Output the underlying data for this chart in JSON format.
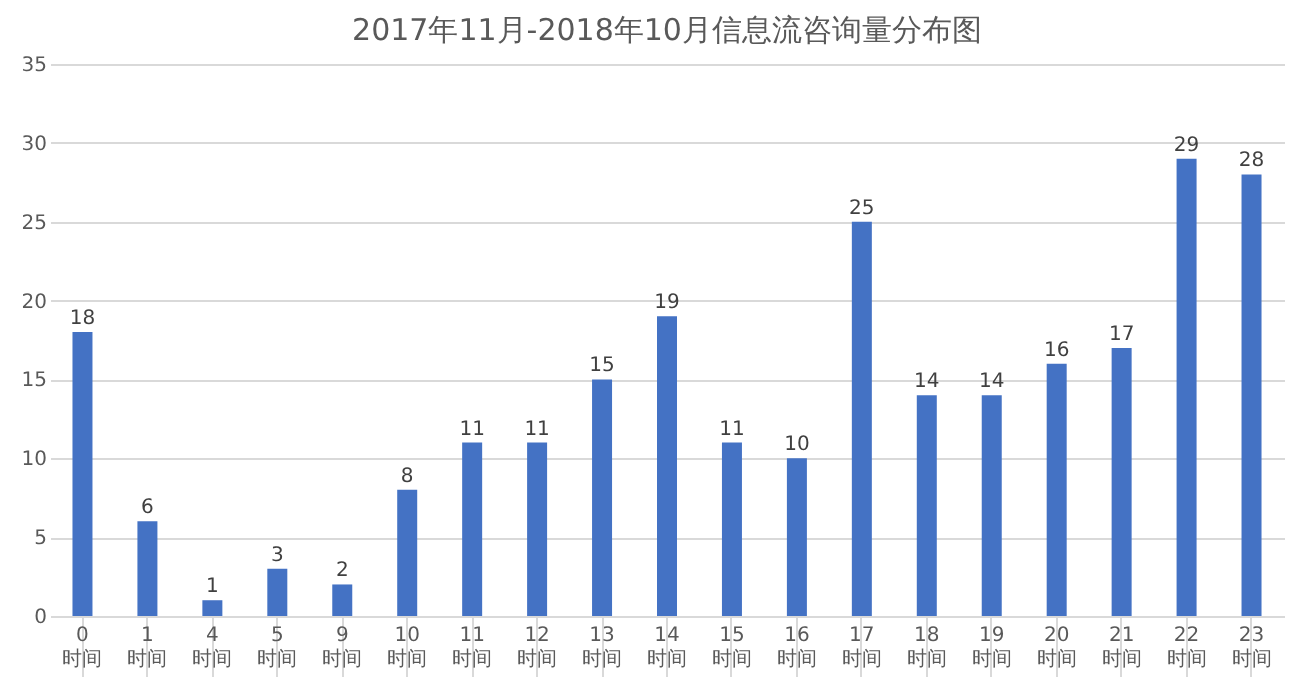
{
  "chart_data": {
    "type": "bar",
    "title": "2017年11月-2018年10月信息流咨询量分布图",
    "categories": [
      "0\n时间",
      "1\n时间",
      "4\n时间",
      "5\n时间",
      "9\n时间",
      "10\n时间",
      "11\n时间",
      "12\n时间",
      "13\n时间",
      "14\n时间",
      "15\n时间",
      "16\n时间",
      "17\n时间",
      "18\n时间",
      "19\n时间",
      "20\n时间",
      "21\n时间",
      "22\n时间",
      "23\n时间"
    ],
    "values": [
      18,
      6,
      1,
      3,
      2,
      8,
      11,
      11,
      15,
      19,
      11,
      10,
      25,
      14,
      14,
      16,
      17,
      29,
      28
    ],
    "color": "#4472c4",
    "ylim": [
      0,
      35
    ],
    "yticks": [
      0,
      5,
      10,
      15,
      20,
      25,
      30,
      35
    ],
    "grid": "y",
    "data_labels": true
  }
}
